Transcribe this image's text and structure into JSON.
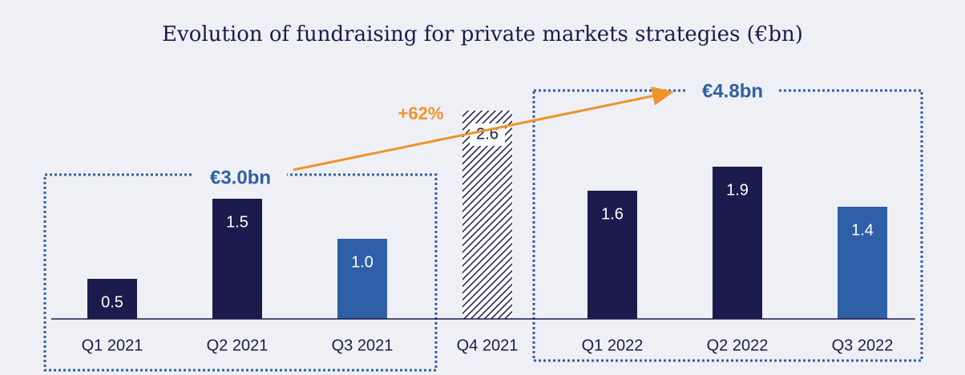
{
  "chart_data": {
    "type": "bar",
    "title": "Evolution of fundraising for private markets strategies (€bn)",
    "categories": [
      "Q1 2021",
      "Q2 2021",
      "Q3 2021",
      "Q4 2021",
      "Q1 2022",
      "Q2 2022",
      "Q3 2022"
    ],
    "values": [
      0.5,
      1.5,
      1.0,
      2.6,
      1.6,
      1.9,
      1.4
    ],
    "value_labels": [
      "0.5",
      "1.5",
      "1.0",
      "2.6",
      "1.6",
      "1.9",
      "1.4"
    ],
    "colors": [
      "#1c1b4d",
      "#1c1b4d",
      "#2f5fa6",
      "#1c1b4d",
      "#1c1b4d",
      "#1c1b4d",
      "#2f5fa6"
    ],
    "patterns": [
      null,
      null,
      null,
      "hatch",
      null,
      null,
      null
    ],
    "ylim": [
      0,
      3.5
    ],
    "annotations": [
      {
        "text": "€3.0bn"
      },
      {
        "text": "€4.8bn"
      },
      {
        "text": "+62%"
      }
    ]
  }
}
